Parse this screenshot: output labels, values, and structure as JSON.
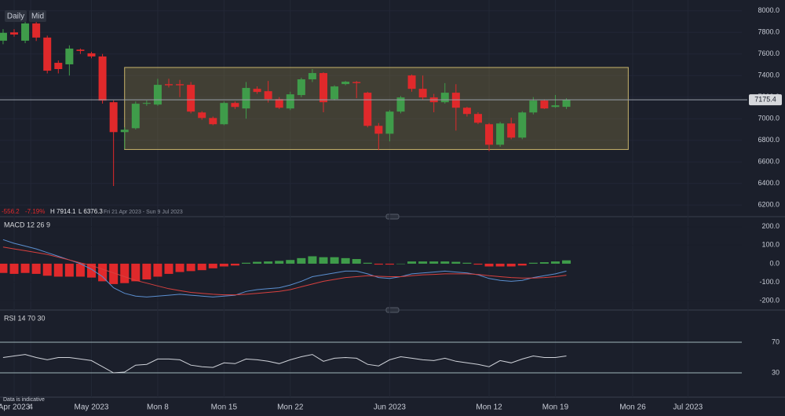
{
  "toolbar": {
    "buttons": [
      "Daily",
      "Mid"
    ]
  },
  "footer": "Data is indicative",
  "chart_data": [
    {
      "type": "candlestick",
      "stats": [
        "-556.2",
        "-7.19%",
        "H 7914.1",
        "L 6376.3",
        "Fri 21 Apr 2023 - Sun 9 Jul 2023"
      ],
      "up_color": "#3f9c4a",
      "down_color": "#e0292b",
      "xlim": [
        -0.28,
        70.79
      ],
      "xticks": [
        {
          "value": 1,
          "label": "Apr 2023"
        },
        {
          "value": 2.5,
          "label": "4"
        },
        {
          "value": 8,
          "label": "May 2023"
        },
        {
          "value": 14,
          "label": "Mon 8"
        },
        {
          "value": 20,
          "label": "Mon 15"
        },
        {
          "value": 26,
          "label": "Mon 22"
        },
        {
          "value": 35,
          "label": "Jun 2023"
        },
        {
          "value": 44,
          "label": "Mon 12"
        },
        {
          "value": 50,
          "label": "Mon 19"
        },
        {
          "value": 57,
          "label": "Mon 26"
        },
        {
          "value": 62,
          "label": "Jul 2023"
        }
      ],
      "ylim": [
        6100,
        8100
      ],
      "yticks": [
        {
          "value": 6200,
          "label": "6200.0"
        },
        {
          "value": 6400,
          "label": "6400.0"
        },
        {
          "value": 6600,
          "label": "6600.0"
        },
        {
          "value": 6800,
          "label": "6800.0"
        },
        {
          "value": 7000,
          "label": "7000.0"
        },
        {
          "value": 7200,
          "label": "7200.0"
        },
        {
          "value": 7400,
          "label": "7400.0"
        },
        {
          "value": 7600,
          "label": "7600.0"
        },
        {
          "value": 7800,
          "label": "7800.0"
        },
        {
          "value": 8000,
          "label": "8000.0"
        }
      ],
      "last": 7175.4,
      "range_box": {
        "x": [
          11,
          56.6
        ],
        "y": [
          6715,
          7475
        ],
        "color": "#8a7a45"
      },
      "open": [
        7723,
        7800,
        7723,
        7883,
        7752,
        7518,
        7504,
        7640,
        7606,
        7577,
        7153,
        6876,
        6912,
        7139,
        7131,
        7320,
        7320,
        7314,
        7058,
        7007,
        6949,
        7146,
        7095,
        7277,
        7255,
        7182,
        7095,
        7219,
        7365,
        7423,
        7182,
        7321,
        7340,
        7241,
        6934,
        6861,
        7066,
        7401,
        7277,
        7197,
        7153,
        7241,
        7102,
        7044,
        6949,
        6759,
        6956,
        6825,
        7058,
        7168,
        7109,
        7110
      ],
      "high": [
        7830,
        7830,
        7900,
        7914.1,
        7770,
        7540,
        7680,
        7650,
        7620,
        7600,
        7170,
        6920,
        7160,
        7170,
        7370,
        7370,
        7360,
        7340,
        7070,
        7020,
        7160,
        7160,
        7340,
        7300,
        7350,
        7200,
        7250,
        7380,
        7460,
        7430,
        7310,
        7350,
        7350,
        7250,
        6960,
        7080,
        7210,
        7410,
        7400,
        7230,
        7330,
        7320,
        7110,
        7060,
        6960,
        6970,
        7010,
        7070,
        7200,
        7180,
        7220,
        7190
      ],
      "low": [
        7690,
        7760,
        7700,
        7720,
        7420,
        7420,
        7400,
        7600,
        7560,
        7140,
        6376.3,
        6720,
        6900,
        7120,
        7120,
        7290,
        7200,
        7050,
        6990,
        6940,
        6940,
        7090,
        7000,
        7230,
        7150,
        7090,
        7080,
        7200,
        7340,
        7060,
        7170,
        7310,
        7190,
        6920,
        6710,
        6790,
        7050,
        7250,
        7180,
        7060,
        7140,
        6890,
        7020,
        6950,
        6700,
        6740,
        6810,
        6810,
        7040,
        7090,
        7100,
        7090
      ],
      "close": [
        7796,
        7780,
        7883,
        7752,
        7445,
        7460,
        7650,
        7628,
        7577,
        7168,
        6876,
        6898,
        7139,
        7146,
        7314,
        7310,
        7310,
        7066,
        7007,
        6949,
        7146,
        7109,
        7285,
        7248,
        7182,
        7102,
        7226,
        7365,
        7423,
        7153,
        7299,
        7343,
        7330,
        6934,
        6861,
        7066,
        7197,
        7277,
        7197,
        7153,
        7241,
        7102,
        7044,
        6963,
        6759,
        6956,
        6825,
        7058,
        7168,
        7095,
        7124,
        7175.4
      ]
    },
    {
      "type": "macd",
      "title": "MACD 12 26 9",
      "ylim": [
        -246,
        237
      ],
      "yticks": [
        {
          "value": -200,
          "label": "-200.0"
        },
        {
          "value": -100,
          "label": "-100.0"
        },
        {
          "value": 0,
          "label": "0.0"
        },
        {
          "value": 100,
          "label": "100.0"
        },
        {
          "value": 200,
          "label": "200.0"
        }
      ],
      "histogram": [
        -50,
        -55,
        -50,
        -55,
        -65,
        -70,
        -70,
        -70,
        -75,
        -95,
        -110,
        -105,
        -95,
        -85,
        -70,
        -55,
        -45,
        -40,
        -35,
        -25,
        -15,
        -10,
        5,
        10,
        12,
        15,
        20,
        30,
        40,
        35,
        35,
        30,
        25,
        5,
        -5,
        -5,
        0,
        12,
        12,
        12,
        12,
        10,
        5,
        -5,
        -15,
        -15,
        -15,
        -10,
        5,
        8,
        12,
        18
      ],
      "series": [
        {
          "color": "#5b8fd0",
          "values": [
            130,
            110,
            95,
            80,
            60,
            40,
            20,
            0,
            -30,
            -70,
            -130,
            -160,
            -175,
            -180,
            -175,
            -170,
            -165,
            -170,
            -175,
            -180,
            -175,
            -170,
            -150,
            -140,
            -135,
            -130,
            -115,
            -95,
            -70,
            -60,
            -50,
            -40,
            -40,
            -55,
            -75,
            -80,
            -70,
            -55,
            -50,
            -45,
            -40,
            -45,
            -50,
            -60,
            -80,
            -90,
            -95,
            -90,
            -75,
            -65,
            -55,
            -40
          ]
        },
        {
          "color": "#d8403e",
          "values": [
            90,
            80,
            70,
            60,
            50,
            35,
            20,
            5,
            -10,
            -30,
            -50,
            -70,
            -90,
            -105,
            -120,
            -135,
            -145,
            -155,
            -160,
            -165,
            -168,
            -168,
            -165,
            -160,
            -155,
            -150,
            -140,
            -125,
            -110,
            -95,
            -85,
            -75,
            -70,
            -65,
            -68,
            -70,
            -70,
            -65,
            -60,
            -58,
            -55,
            -55,
            -55,
            -58,
            -65,
            -70,
            -75,
            -78,
            -78,
            -75,
            -70,
            -62
          ]
        }
      ]
    },
    {
      "type": "line",
      "title": "RSI 14 70 30",
      "ylim": [
        -0.8,
        106.9
      ],
      "yticks": [
        30,
        70
      ],
      "series": [
        {
          "color": "#d0d3da",
          "values": [
            50,
            52,
            54,
            50,
            47,
            50,
            50,
            48,
            46,
            38,
            30,
            31,
            40,
            41,
            48,
            48,
            47,
            40,
            38,
            37,
            43,
            42,
            48,
            47,
            45,
            42,
            47,
            51,
            54,
            45,
            49,
            50,
            49,
            41,
            39,
            47,
            51,
            49,
            47,
            46,
            49,
            45,
            43,
            41,
            38,
            46,
            43,
            48,
            52,
            50,
            50,
            52
          ]
        }
      ]
    }
  ]
}
